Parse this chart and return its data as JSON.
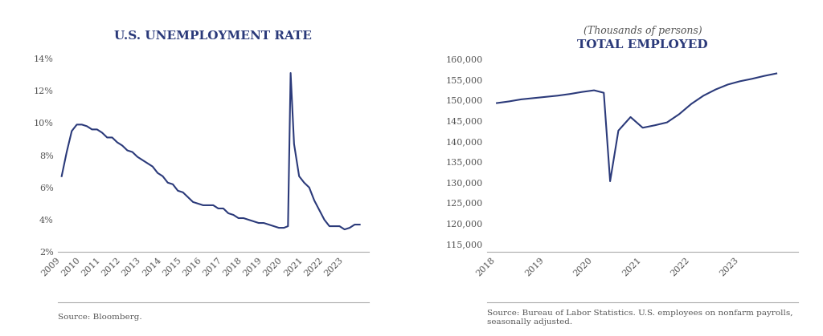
{
  "chart1": {
    "title": "U.S. UNEMPLOYMENT RATE",
    "source": "Source: Bloomberg.",
    "line_color": "#2b3a7a",
    "ylim": [
      0.02,
      0.145
    ],
    "yticks": [
      0.02,
      0.04,
      0.06,
      0.08,
      0.1,
      0.12,
      0.14
    ],
    "ytick_labels": [
      "2%",
      "4%",
      "6%",
      "8%",
      "10%",
      "12%",
      "14%"
    ],
    "x_years": [
      2009,
      2010,
      2011,
      2012,
      2013,
      2014,
      2015,
      2016,
      2017,
      2018,
      2019,
      2020,
      2021,
      2022,
      2023
    ],
    "xlim": [
      2008.8,
      2024.2
    ],
    "data_x": [
      2009.0,
      2009.25,
      2009.5,
      2009.75,
      2010.0,
      2010.25,
      2010.5,
      2010.75,
      2011.0,
      2011.25,
      2011.5,
      2011.75,
      2012.0,
      2012.25,
      2012.5,
      2012.75,
      2013.0,
      2013.25,
      2013.5,
      2013.75,
      2014.0,
      2014.25,
      2014.5,
      2014.75,
      2015.0,
      2015.25,
      2015.5,
      2015.75,
      2016.0,
      2016.25,
      2016.5,
      2016.75,
      2017.0,
      2017.25,
      2017.5,
      2017.75,
      2018.0,
      2018.25,
      2018.5,
      2018.75,
      2019.0,
      2019.25,
      2019.5,
      2019.75,
      2020.0,
      2020.2,
      2020.33,
      2020.5,
      2020.75,
      2021.0,
      2021.25,
      2021.5,
      2021.75,
      2022.0,
      2022.25,
      2022.5,
      2022.75,
      2023.0,
      2023.25,
      2023.5,
      2023.75
    ],
    "data_y": [
      0.067,
      0.082,
      0.095,
      0.099,
      0.099,
      0.098,
      0.096,
      0.096,
      0.094,
      0.091,
      0.091,
      0.088,
      0.086,
      0.083,
      0.082,
      0.079,
      0.077,
      0.075,
      0.073,
      0.069,
      0.067,
      0.063,
      0.062,
      0.058,
      0.057,
      0.054,
      0.051,
      0.05,
      0.049,
      0.049,
      0.049,
      0.047,
      0.047,
      0.044,
      0.043,
      0.041,
      0.041,
      0.04,
      0.039,
      0.038,
      0.038,
      0.037,
      0.036,
      0.035,
      0.035,
      0.036,
      0.131,
      0.087,
      0.067,
      0.063,
      0.06,
      0.052,
      0.046,
      0.04,
      0.036,
      0.036,
      0.036,
      0.034,
      0.035,
      0.037,
      0.037
    ]
  },
  "chart2": {
    "title": "TOTAL EMPLOYED",
    "subtitle": "(Thousands of persons)",
    "source": "Source: Bureau of Labor Statistics. U.S. employees on nonfarm payrolls,\nseasonally adjusted.",
    "line_color": "#2b3a7a",
    "ylim": [
      113000,
      162000
    ],
    "yticks": [
      115000,
      120000,
      125000,
      130000,
      135000,
      140000,
      145000,
      150000,
      155000,
      160000
    ],
    "ytick_labels": [
      "115,000",
      "120,000",
      "125,000",
      "130,000",
      "135,000",
      "140,000",
      "145,000",
      "150,000",
      "155,000",
      "160,000"
    ],
    "x_years": [
      2018,
      2019,
      2020,
      2021,
      2022,
      2023
    ],
    "xlim": [
      2017.8,
      2024.2
    ],
    "data_x": [
      2018.0,
      2018.25,
      2018.5,
      2018.75,
      2019.0,
      2019.25,
      2019.5,
      2019.75,
      2020.0,
      2020.2,
      2020.33,
      2020.5,
      2020.75,
      2021.0,
      2021.25,
      2021.5,
      2021.75,
      2022.0,
      2022.25,
      2022.5,
      2022.75,
      2023.0,
      2023.25,
      2023.5,
      2023.75
    ],
    "data_y": [
      149200,
      149600,
      150100,
      150400,
      150700,
      151000,
      151400,
      151900,
      152300,
      151700,
      130200,
      142500,
      145800,
      143200,
      143800,
      144500,
      146500,
      149000,
      151000,
      152500,
      153700,
      154500,
      155100,
      155800,
      156400
    ]
  },
  "background_color": "#ffffff",
  "text_color": "#555555",
  "title_color": "#2b3a7a",
  "subtitle_color": "#555555",
  "line_width": 1.5,
  "axis_color": "#aaaaaa",
  "separator_color": "#aaaaaa"
}
